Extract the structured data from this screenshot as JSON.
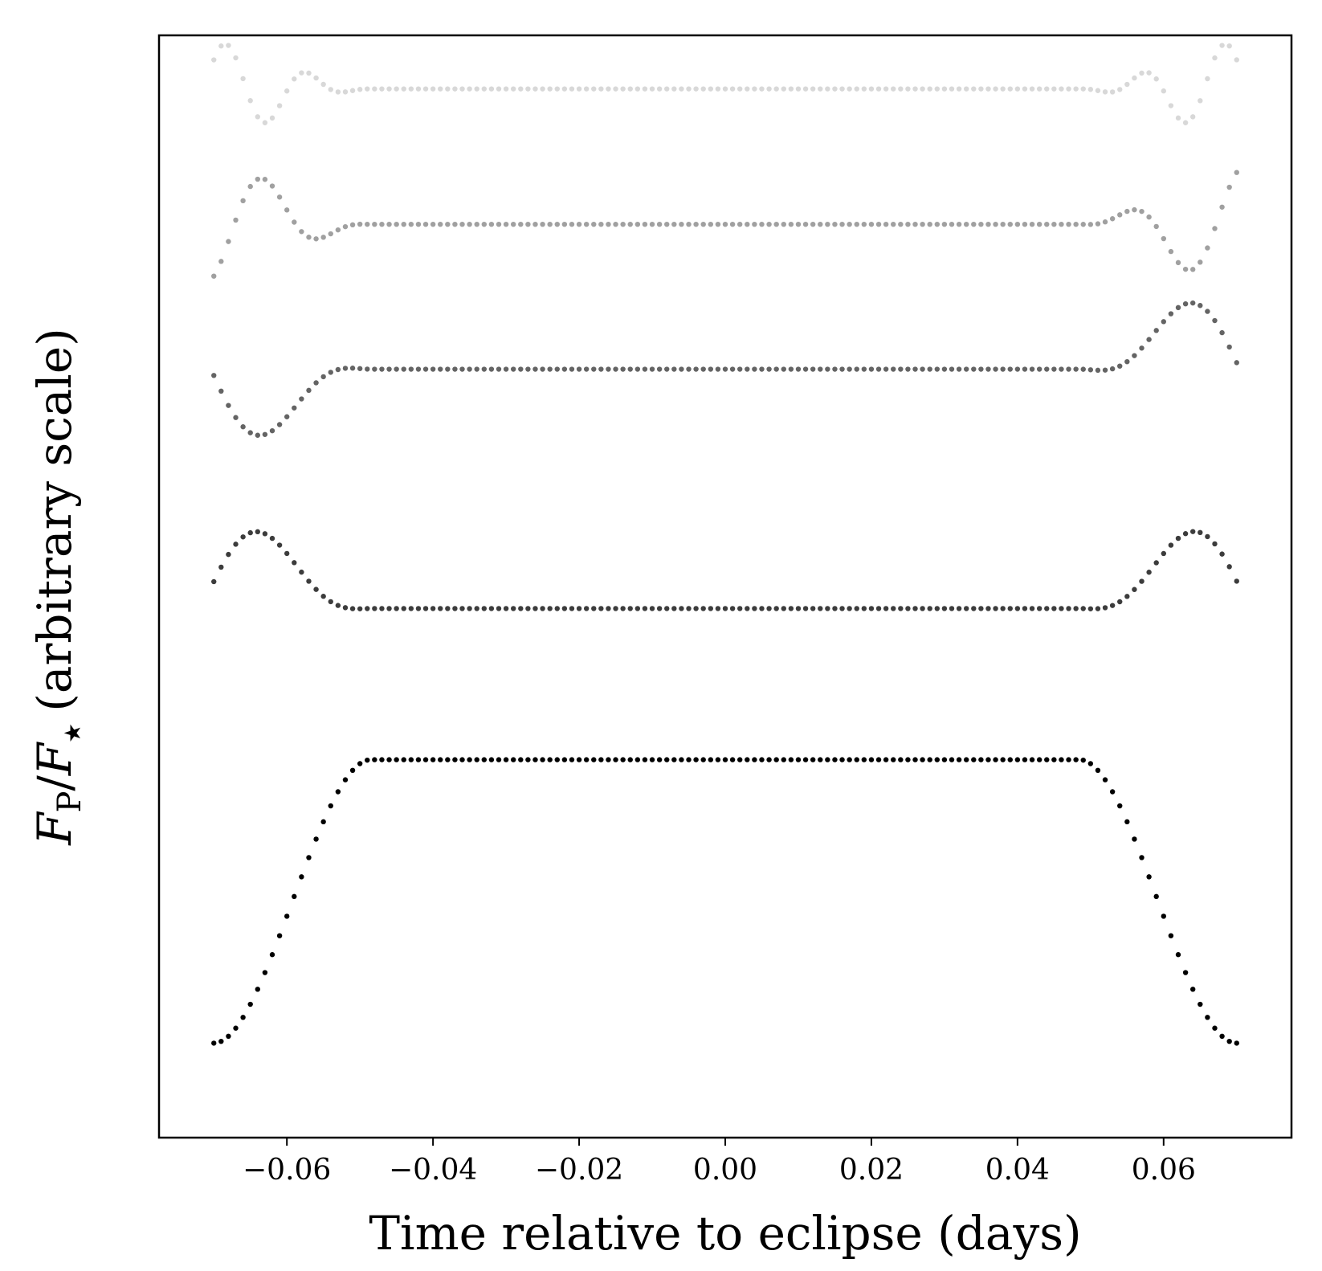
{
  "chart_data": {
    "type": "scatter",
    "title": "",
    "xlabel": "Time relative to eclipse (days)",
    "ylabel": {
      "F": "F",
      "sub_p": "P",
      "slash": "/",
      "star_sub": "★",
      "suffix": "(arbitrary scale)"
    },
    "xlim": [
      -0.0775,
      0.0775
    ],
    "xticks": [
      -0.06,
      -0.04,
      -0.02,
      0.0,
      0.02,
      0.04,
      0.06
    ],
    "xtick_labels": [
      "−0.06",
      "−0.04",
      "−0.02",
      "0.00",
      "0.02",
      "0.04",
      "0.06"
    ],
    "yticks": [],
    "ylim": [
      -0.6,
      6.4
    ],
    "grid": false,
    "legend": "none",
    "x_range": [
      -0.07,
      0.07
    ],
    "n_points": 141,
    "series": [
      {
        "color": "#000000",
        "offset": 0,
        "plateau": 1.8,
        "ingress_start": -0.0485,
        "egress_end": 0.0485,
        "width": 0.0215,
        "sinusoid": {
          "amp": 0,
          "wavelength": 0.03,
          "phase": 0
        }
      },
      {
        "color": "#3c3c3c",
        "offset": 2.76,
        "plateau": 0,
        "ingress_start": -0.0485,
        "egress_end": 0.0485,
        "width": 0.0215,
        "sinusoid": {
          "amp": 0.65,
          "wavelength": 0.041,
          "phase": 4.71
        }
      },
      {
        "color": "#646464",
        "offset": 4.28,
        "plateau": 0,
        "ingress_start": -0.0485,
        "egress_end": 0.0485,
        "width": 0.0215,
        "sinusoid": {
          "amp": 0.57,
          "wavelength": 0.0352,
          "phase": 3.14
        }
      },
      {
        "color": "#a0a0a0",
        "offset": 5.2,
        "plateau": 0,
        "ingress_start": -0.0485,
        "egress_end": 0.0485,
        "width": 0.0215,
        "sinusoid": {
          "amp": 0.38,
          "wavelength": 0.0168,
          "phase": 0.0
        }
      },
      {
        "color": "#d8d8d8",
        "offset": 6.06,
        "plateau": 0,
        "ingress_start": -0.0485,
        "egress_end": 0.0485,
        "width": 0.0215,
        "sinusoid": {
          "amp": 0.29,
          "wavelength": 0.0114,
          "phase": 1.57
        }
      }
    ]
  }
}
